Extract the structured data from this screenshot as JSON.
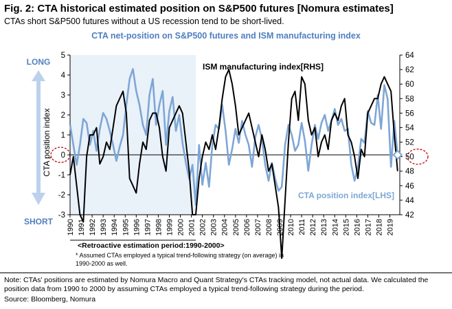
{
  "figure": {
    "title": "Fig. 2: CTA historical estimated position on S&P500 futures [Nomura estimates]",
    "subtitle": "CTAs short S&P500 futures without a US recession tend to be short-lived.",
    "note": "Note: CTAs' positions are estimated by Nomura Macro and Quant Strategy's CTAs tracking model, not actual data. We calculated the position data from 1990 to 2000 by assuming CTAs employed a typical trend-following strategy during the period.",
    "source": "Source: Bloomberg, Nomura"
  },
  "colors": {
    "cta_series": "#7ea6d6",
    "ism_series": "#000000",
    "title_blue": "#4f7fbf",
    "shade": "#e9f1f9",
    "arrow": "#bcd2ec",
    "marker_red": "#c00000"
  },
  "chart_data": {
    "type": "line",
    "title": "CTA net-position on S&P500 futures and ISM manufacturing index",
    "left_axis": {
      "label": "CTA position index",
      "range": [
        -3,
        5
      ],
      "ticks": [
        "-3",
        "-2",
        "-1",
        "0",
        "1",
        "2",
        "3",
        "4",
        "5"
      ]
    },
    "right_axis": {
      "range": [
        42,
        64
      ],
      "ticks": [
        "42",
        "44",
        "46",
        "48",
        "50",
        "52",
        "54",
        "56",
        "58",
        "60",
        "62",
        "64"
      ]
    },
    "x_axis": {
      "range": [
        1990,
        2019.9
      ],
      "ticks": [
        "1990",
        "1991",
        "1992",
        "1993",
        "1994",
        "1995",
        "1996",
        "1997",
        "1998",
        "1999",
        "2000",
        "2001",
        "2002",
        "2003",
        "2004",
        "2005",
        "2006",
        "2007",
        "2008",
        "2009",
        "2010",
        "2011",
        "2012",
        "2013",
        "2014",
        "2015",
        "2016",
        "2017",
        "2018",
        "2019"
      ]
    },
    "arrow_labels": {
      "top": "LONG",
      "bottom": "SHORT"
    },
    "shaded_region": {
      "from": 1990,
      "to": 2001.4,
      "label": "<Retroactive estimation period:1990-2000>"
    },
    "shaded_note": "* Assumed CTAs employed a typical trend-following strategy (on average) in 1990-2000 as well.",
    "series": [
      {
        "name": "CTA position index[LHS]",
        "axis": "left",
        "x": [
          1990,
          1990.3,
          1990.6,
          1990.9,
          1991.2,
          1991.5,
          1991.8,
          1992.1,
          1992.4,
          1992.7,
          1993,
          1993.3,
          1993.6,
          1993.9,
          1994.2,
          1994.5,
          1994.8,
          1995.1,
          1995.4,
          1995.7,
          1996,
          1996.3,
          1996.6,
          1996.9,
          1997.2,
          1997.5,
          1997.8,
          1998.1,
          1998.4,
          1998.7,
          1999,
          1999.3,
          1999.6,
          1999.9,
          2000.2,
          2000.5,
          2000.8,
          2001.1,
          2001.4,
          2001.7,
          2002,
          2002.3,
          2002.6,
          2002.9,
          2003.2,
          2003.5,
          2003.8,
          2004.1,
          2004.4,
          2004.7,
          2005,
          2005.3,
          2005.6,
          2005.9,
          2006.2,
          2006.5,
          2006.8,
          2007.1,
          2007.4,
          2007.7,
          2008,
          2008.3,
          2008.6,
          2008.9,
          2009.2,
          2009.5,
          2009.8,
          2010.1,
          2010.4,
          2010.7,
          2011,
          2011.3,
          2011.6,
          2011.9,
          2012.2,
          2012.5,
          2012.8,
          2013.1,
          2013.4,
          2013.7,
          2014,
          2014.3,
          2014.6,
          2014.9,
          2015.2,
          2015.5,
          2015.8,
          2016.1,
          2016.4,
          2016.7,
          2017,
          2017.3,
          2017.6,
          2017.9,
          2018.2,
          2018.5,
          2018.8,
          2019.1,
          2019.4,
          2019.7
        ],
        "values": [
          1.5,
          0.5,
          -0.5,
          0.5,
          1.8,
          1.6,
          0.5,
          1.2,
          0.2,
          1.3,
          2.1,
          1.8,
          1.2,
          0.5,
          -0.3,
          0.4,
          1.0,
          2.5,
          3.8,
          4.3,
          3.2,
          2.5,
          1.5,
          1.0,
          3.0,
          3.8,
          1.5,
          2.5,
          3.2,
          0.5,
          2.2,
          2.9,
          1.2,
          2.0,
          0.6,
          -0.4,
          -1.2,
          -0.5,
          -2.5,
          0.5,
          -1.5,
          -0.4,
          -1.6,
          0.5,
          1.5,
          1.3,
          2.5,
          1.2,
          -0.5,
          0.3,
          1.3,
          0.6,
          1.7,
          1.0,
          0.5,
          -0.6,
          0.9,
          1.5,
          0.8,
          -0.5,
          -1.3,
          -0.4,
          -1.2,
          -1.8,
          -1.6,
          0.5,
          1.5,
          1.0,
          0.2,
          0.5,
          1.6,
          0.7,
          -0.8,
          0.5,
          1.5,
          0.8,
          1.6,
          2.0,
          1.2,
          1.7,
          2.3,
          1.5,
          1.8,
          1.2,
          1.3,
          -0.5,
          -1.3,
          -0.6,
          0.8,
          0.6,
          2.2,
          1.6,
          1.5,
          3.0,
          1.3,
          3.5,
          2.8,
          -0.6,
          1.7,
          0
        ]
      },
      {
        "name": "ISM manufacturing index[RHS]",
        "axis": "right",
        "x": [
          1990,
          1990.3,
          1990.6,
          1990.9,
          1991.2,
          1991.5,
          1991.8,
          1992.1,
          1992.4,
          1992.7,
          1993,
          1993.3,
          1993.6,
          1993.9,
          1994.2,
          1994.5,
          1994.8,
          1995.1,
          1995.4,
          1995.7,
          1996,
          1996.3,
          1996.6,
          1996.9,
          1997.2,
          1997.5,
          1997.8,
          1998.1,
          1998.4,
          1998.7,
          1999,
          1999.3,
          1999.6,
          1999.9,
          2000.2,
          2000.5,
          2000.8,
          2001.1,
          2001.4,
          2001.7,
          2002,
          2002.3,
          2002.6,
          2002.9,
          2003.2,
          2003.5,
          2003.8,
          2004.1,
          2004.4,
          2004.7,
          2005,
          2005.3,
          2005.6,
          2005.9,
          2006.2,
          2006.5,
          2006.8,
          2007.1,
          2007.4,
          2007.7,
          2008,
          2008.3,
          2008.6,
          2008.9,
          2009.2,
          2009.5,
          2009.8,
          2010.1,
          2010.4,
          2010.7,
          2011,
          2011.3,
          2011.6,
          2011.9,
          2012.2,
          2012.5,
          2012.8,
          2013.1,
          2013.4,
          2013.7,
          2014,
          2014.3,
          2014.6,
          2014.9,
          2015.2,
          2015.5,
          2015.8,
          2016.1,
          2016.4,
          2016.7,
          2017,
          2017.3,
          2017.6,
          2017.9,
          2018.2,
          2018.5,
          2018.8,
          2019.1,
          2019.4,
          2019.7
        ],
        "values": [
          47.5,
          50,
          46,
          42,
          41,
          50,
          53,
          53,
          54,
          49,
          50,
          52,
          51,
          54,
          57,
          58,
          59,
          56,
          47,
          46,
          45,
          49,
          52,
          51,
          55,
          56,
          56,
          54,
          50,
          48,
          54,
          55,
          56,
          57,
          56,
          52,
          48,
          42,
          42,
          47,
          50,
          52,
          51,
          53,
          51,
          54,
          58,
          61,
          62,
          60,
          57,
          53,
          54,
          55,
          56,
          54,
          52,
          50,
          53,
          51,
          48,
          49,
          46,
          43,
          36,
          44,
          52,
          58,
          59,
          55,
          61,
          60,
          55,
          53,
          54,
          50,
          52,
          53,
          51,
          55,
          56,
          55,
          57,
          58,
          53,
          52,
          50,
          47,
          51,
          50,
          56,
          57,
          58,
          58,
          60,
          61,
          60,
          59,
          53,
          48
        ]
      }
    ],
    "grid": false,
    "legend": "inline-labels"
  }
}
